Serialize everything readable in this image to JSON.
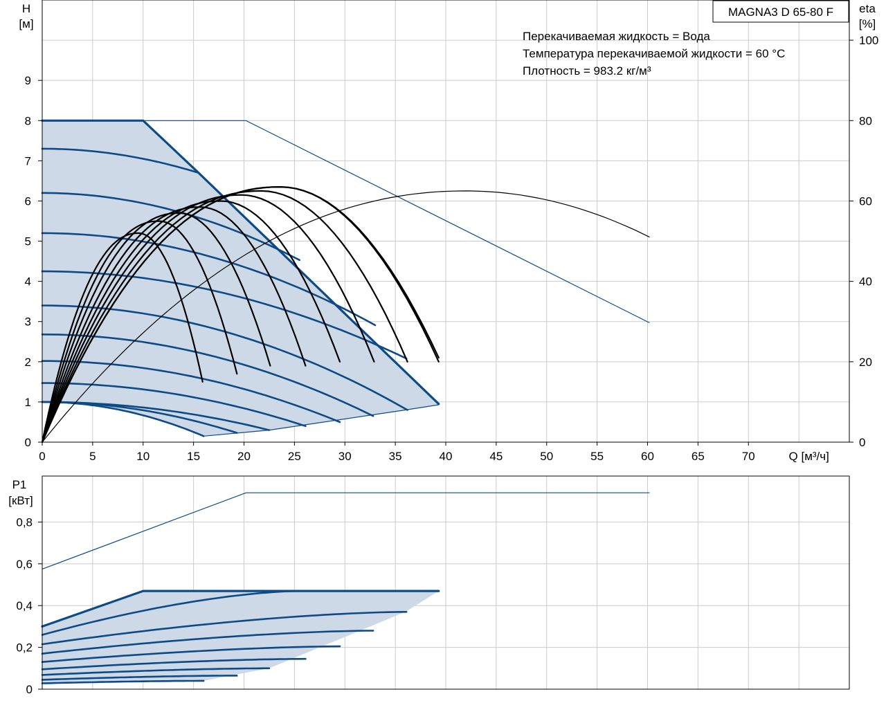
{
  "chart_data": [
    {
      "type": "line",
      "title": "MAGNA3 D 65-80 F",
      "info_lines": [
        "Перекачиваемая жидкость = Вода",
        "Температура перекачиваемой жидкости = 60 °C",
        "Плотность = 983.2 кг/м³"
      ],
      "xlabel": "Q [м³/ч]",
      "ylabel_top": "H",
      "ylabel_bottom": "[м]",
      "y2label_top": "eta",
      "y2label_bottom": "[%]",
      "xlim": [
        0,
        80
      ],
      "ylim": [
        0,
        11
      ],
      "y2lim": [
        0,
        110
      ],
      "x_ticks": [
        0,
        5,
        10,
        15,
        20,
        25,
        30,
        35,
        40,
        45,
        50,
        55,
        60,
        65,
        70
      ],
      "y_ticks": [
        0,
        1,
        2,
        3,
        4,
        5,
        6,
        7,
        8,
        9
      ],
      "y2_ticks": [
        0,
        20,
        40,
        60,
        80,
        100
      ],
      "grid": true,
      "max_curve_single": [
        [
          0,
          8
        ],
        [
          10,
          8
        ],
        [
          15.5,
          6.7
        ],
        [
          39.3,
          0.95
        ]
      ],
      "max_curve_parallel": [
        [
          0,
          8
        ],
        [
          20.2,
          8
        ],
        [
          60.2,
          2.97
        ]
      ],
      "min_curve": [
        [
          16,
          0.15
        ],
        [
          22.5,
          0.3
        ],
        [
          36,
          0.8
        ],
        [
          39.3,
          0.93
        ]
      ],
      "speed_curves": [
        {
          "h0": 7.3,
          "q_end": 15.5,
          "h_end": 6.7
        },
        {
          "h0": 6.2,
          "q_end": 25.5,
          "h_end": 4.53
        },
        {
          "h0": 5.2,
          "q_end": 33.0,
          "h_end": 2.91
        },
        {
          "h0": 4.25,
          "q_end": 36.1,
          "h_end": 2.08
        },
        {
          "h0": 3.4,
          "q_end": 36.2,
          "h_end": 0.8
        },
        {
          "h0": 2.68,
          "q_end": 32.8,
          "h_end": 0.65
        },
        {
          "h0": 2.02,
          "q_end": 29.5,
          "h_end": 0.5
        },
        {
          "h0": 1.47,
          "q_end": 26.1,
          "h_end": 0.4
        },
        {
          "h0": 1.0,
          "q_end": 22.5,
          "h_end": 0.3
        },
        {
          "h0": 1.0,
          "q_end": 19.3,
          "h_end": 0.23
        },
        {
          "h0": 1.0,
          "q_end": 16.0,
          "h_end": 0.15
        }
      ],
      "efficiency_curves": [
        {
          "q_end": 15.9,
          "eta_peak": 52,
          "eta_end": 15
        },
        {
          "q_end": 19.3,
          "eta_peak": 55,
          "eta_end": 17
        },
        {
          "q_end": 22.6,
          "eta_peak": 57,
          "eta_end": 19
        },
        {
          "q_end": 26.1,
          "eta_peak": 58.5,
          "eta_end": 19
        },
        {
          "q_end": 29.5,
          "eta_peak": 60,
          "eta_end": 20
        },
        {
          "q_end": 32.9,
          "eta_peak": 61.5,
          "eta_end": 20
        },
        {
          "q_end": 36.2,
          "eta_peak": 62.5,
          "eta_end": 20
        },
        {
          "q_end": 39.3,
          "eta_peak": 63.5,
          "eta_end": 20
        },
        {
          "q_end": 39.3,
          "eta_peak": 63.5,
          "eta_end": 21
        }
      ],
      "efficiency_parallel": {
        "q_peak": 42,
        "eta_peak": 62.5,
        "q_end": 60.2,
        "eta_end": 51
      }
    },
    {
      "type": "line",
      "ylabel_top": "P1",
      "ylabel_bottom": "[кВт]",
      "xlim": [
        0,
        80
      ],
      "ylim": [
        0,
        1.02
      ],
      "y_ticks": [
        "0",
        "0,2",
        "0,4",
        "0,6",
        "0,8"
      ],
      "y_tick_values": [
        0,
        0.2,
        0.4,
        0.6,
        0.8
      ],
      "grid": true,
      "power_parallel": [
        [
          0,
          0.575
        ],
        [
          20.2,
          0.94
        ],
        [
          60.2,
          0.94
        ]
      ],
      "power_max": [
        [
          0,
          0.3
        ],
        [
          10,
          0.47
        ],
        [
          39.3,
          0.47
        ]
      ],
      "power_min_edge": [
        [
          16,
          0.04
        ],
        [
          22.5,
          0.1
        ],
        [
          36,
          0.37
        ],
        [
          39.3,
          0.47
        ]
      ],
      "power_curves": [
        {
          "p0": 0.26,
          "q_end": 25.5,
          "p_end": 0.47
        },
        {
          "p0": 0.215,
          "q_end": 36.1,
          "p_end": 0.37
        },
        {
          "p0": 0.17,
          "q_end": 32.8,
          "p_end": 0.28
        },
        {
          "p0": 0.13,
          "q_end": 29.5,
          "p_end": 0.205
        },
        {
          "p0": 0.095,
          "q_end": 26.1,
          "p_end": 0.145
        },
        {
          "p0": 0.068,
          "q_end": 22.5,
          "p_end": 0.1
        },
        {
          "p0": 0.045,
          "q_end": 19.3,
          "p_end": 0.065
        },
        {
          "p0": 0.028,
          "q_end": 16.0,
          "p_end": 0.04
        }
      ]
    }
  ]
}
